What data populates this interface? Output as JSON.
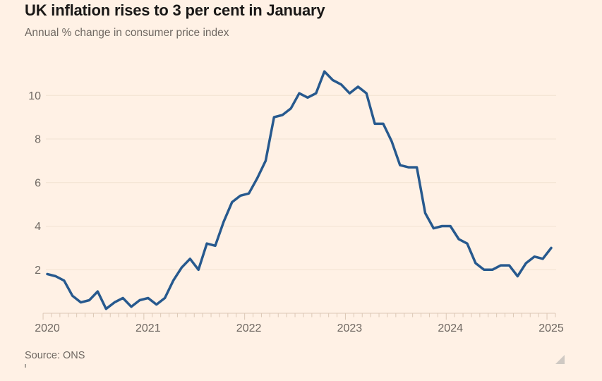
{
  "header": {
    "title": "UK inflation rises to 3 per cent in January",
    "subtitle": "Annual % change in consumer price index"
  },
  "footer": {
    "source": "Source: ONS"
  },
  "colors": {
    "background": "#FFF1E5",
    "line": "#27598E",
    "grid": "#F2E2D2",
    "axis": "#DCC8B6",
    "muted_text": "#6F6862",
    "title_text": "#1A1817",
    "resize_handle": "#CFC9C3"
  },
  "chart_data": {
    "type": "line",
    "title": "UK inflation rises to 3 per cent in January",
    "subtitle": "Annual % change in consumer price index",
    "source": "Source: ONS",
    "x_unit": "month",
    "x_range": [
      "2020-01",
      "2025-01"
    ],
    "x_tick_labels": [
      "2020",
      "2021",
      "2022",
      "2023",
      "2024",
      "2025"
    ],
    "y_tick_values": [
      2,
      4,
      6,
      8,
      10
    ],
    "ylim": [
      0,
      11.5
    ],
    "grid": "horizontal-only",
    "legend": "none",
    "series": [
      {
        "name": "UK CPI annual % change",
        "color": "#27598E",
        "values": [
          1.8,
          1.7,
          1.5,
          0.8,
          0.5,
          0.6,
          1.0,
          0.2,
          0.5,
          0.7,
          0.3,
          0.6,
          0.7,
          0.4,
          0.7,
          1.5,
          2.1,
          2.5,
          2.0,
          3.2,
          3.1,
          4.2,
          5.1,
          5.4,
          5.5,
          6.2,
          7.0,
          9.0,
          9.1,
          9.4,
          10.1,
          9.9,
          10.1,
          11.1,
          10.7,
          10.5,
          10.1,
          10.4,
          10.1,
          8.7,
          8.7,
          7.9,
          6.8,
          6.7,
          6.7,
          4.6,
          3.9,
          4.0,
          4.0,
          3.4,
          3.2,
          2.3,
          2.0,
          2.0,
          2.2,
          2.2,
          1.7,
          2.3,
          2.6,
          2.5,
          3.0
        ]
      }
    ]
  }
}
